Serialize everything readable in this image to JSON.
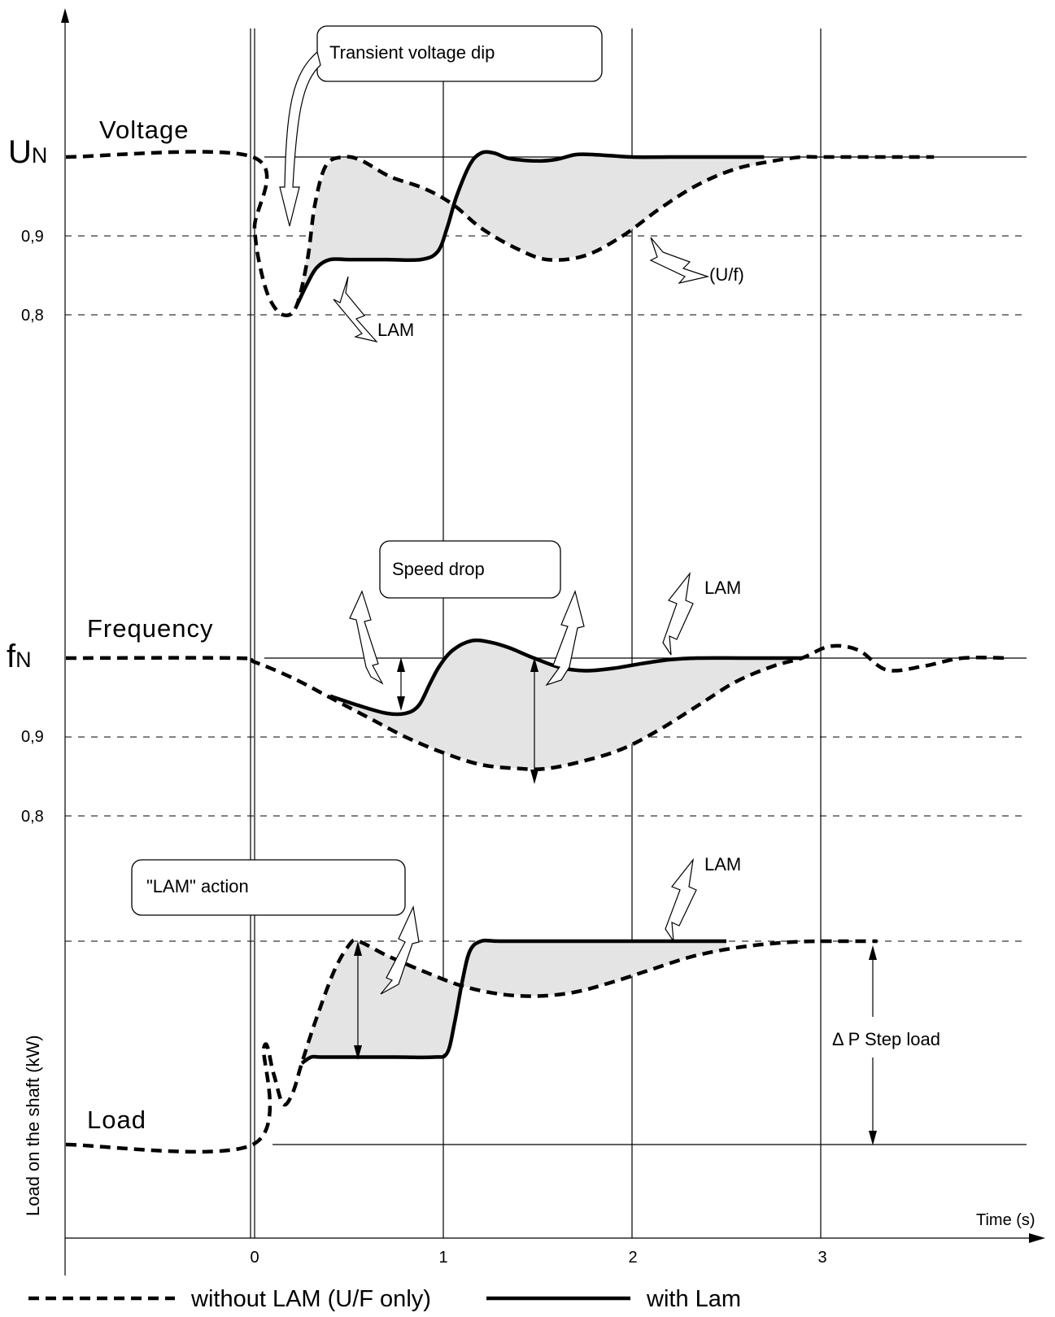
{
  "chart_data": {
    "type": "line",
    "title": "",
    "xlabel": "Time (s)",
    "ylabel": "Load on the shaft  (kW)",
    "xticks": [
      "0",
      "1",
      "2",
      "3"
    ],
    "xlim": [
      -1,
      4
    ],
    "legend": {
      "position": "bottom",
      "entries": [
        {
          "label": "without LAM (U/F only)",
          "style": "dashed"
        },
        {
          "label": "with Lam",
          "style": "solid"
        }
      ]
    },
    "panels": [
      {
        "id": "voltage",
        "title": "Voltage",
        "nominal_label_main": "U",
        "nominal_label_sub": "N",
        "yticks": [
          "0,9",
          "0,8"
        ],
        "ref_levels": [
          1.0,
          0.9,
          0.8
        ],
        "series": [
          {
            "name": "without LAM (U/F only)",
            "style": "dashed",
            "x": [
              -1,
              -0.01,
              0.0,
              0.03,
              0.08,
              0.15,
              0.22,
              0.28,
              0.32,
              0.38,
              0.48,
              0.57,
              0.72,
              0.9,
              1.05,
              1.2,
              1.38,
              1.55,
              1.75,
              1.95,
              2.15,
              2.35,
              2.55,
              2.75,
              2.9,
              3.0,
              3.4,
              3.6
            ],
            "y": [
              1.0,
              1.0,
              0.91,
              0.86,
              0.82,
              0.8,
              0.81,
              0.87,
              0.94,
              0.99,
              1.0,
              0.995,
              0.975,
              0.96,
              0.94,
              0.91,
              0.885,
              0.87,
              0.875,
              0.9,
              0.935,
              0.965,
              0.985,
              0.995,
              1.0,
              1.0,
              1.0,
              1.0
            ]
          },
          {
            "name": "with Lam",
            "style": "solid",
            "x": [
              0.22,
              0.28,
              0.33,
              0.4,
              0.5,
              0.7,
              0.88,
              0.97,
              1.02,
              1.07,
              1.14,
              1.2,
              1.27,
              1.35,
              1.5,
              1.6,
              1.7,
              1.8,
              2.0,
              2.2,
              2.5,
              2.7
            ],
            "y": [
              0.81,
              0.84,
              0.86,
              0.87,
              0.87,
              0.87,
              0.87,
              0.88,
              0.91,
              0.95,
              0.99,
              1.005,
              1.005,
              0.998,
              0.995,
              0.997,
              1.003,
              1.003,
              1.0,
              1.0,
              1.0,
              1.0
            ]
          }
        ],
        "annotations": [
          "Transient voltage dip",
          "LAM",
          "(U/f)"
        ]
      },
      {
        "id": "frequency",
        "title": "Frequency",
        "nominal_label_main": "f",
        "nominal_label_sub": "N",
        "yticks": [
          "0,9",
          "0,8"
        ],
        "ref_levels": [
          1.0,
          0.9,
          0.8
        ],
        "series": [
          {
            "name": "without LAM (U/F only)",
            "style": "dashed",
            "x": [
              -1,
              -0.1,
              0.0,
              0.2,
              0.4,
              0.6,
              0.8,
              1.0,
              1.2,
              1.4,
              1.55,
              1.75,
              1.95,
              2.15,
              2.35,
              2.55,
              2.75,
              2.9,
              3.05,
              3.2,
              3.35,
              3.55,
              3.75,
              4.0
            ],
            "y": [
              1.0,
              1.0,
              0.995,
              0.975,
              0.95,
              0.925,
              0.9,
              0.88,
              0.865,
              0.86,
              0.86,
              0.87,
              0.885,
              0.91,
              0.94,
              0.97,
              0.99,
              1.0,
              1.015,
              1.01,
              0.985,
              0.99,
              1.0,
              1.0
            ]
          },
          {
            "name": "with Lam",
            "style": "solid",
            "x": [
              0.4,
              0.55,
              0.7,
              0.8,
              0.87,
              0.93,
              0.98,
              1.05,
              1.15,
              1.25,
              1.35,
              1.48,
              1.62,
              1.75,
              1.9,
              2.05,
              2.2,
              2.35,
              2.6,
              2.9
            ],
            "y": [
              0.952,
              0.94,
              0.93,
              0.93,
              0.94,
              0.968,
              0.99,
              1.01,
              1.022,
              1.02,
              1.013,
              1.0,
              0.988,
              0.984,
              0.987,
              0.993,
              0.998,
              1.0,
              1.0,
              1.0
            ]
          }
        ],
        "annotations": [
          "Speed drop",
          "LAM"
        ]
      },
      {
        "id": "load",
        "title": "Load",
        "ylabel": "Load on the shaft  (kW)",
        "series": [
          {
            "name": "without LAM (U/F only)",
            "style": "dashed",
            "x": [
              -1,
              -0.01,
              0.05,
              0.1,
              0.15,
              0.2,
              0.25,
              0.32,
              0.42,
              0.5,
              0.55,
              0.7,
              0.9,
              1.1,
              1.3,
              1.5,
              1.7,
              1.9,
              2.1,
              2.3,
              2.5,
              2.7,
              2.9,
              3.1,
              3.3
            ],
            "y": [
              0.0,
              0.0,
              0.48,
              0.35,
              0.2,
              0.25,
              0.4,
              0.6,
              0.85,
              0.98,
              1.0,
              0.93,
              0.85,
              0.78,
              0.74,
              0.73,
              0.75,
              0.8,
              0.86,
              0.92,
              0.96,
              0.985,
              0.998,
              1.0,
              1.0
            ]
          },
          {
            "name": "with Lam",
            "style": "solid",
            "x": [
              0.25,
              0.3,
              0.35,
              0.5,
              0.75,
              0.95,
              1.02,
              1.06,
              1.1,
              1.14,
              1.2,
              1.3,
              1.6,
              2.0,
              2.5
            ],
            "y": [
              0.4,
              0.43,
              0.43,
              0.43,
              0.43,
              0.43,
              0.45,
              0.6,
              0.8,
              0.95,
              1.0,
              1.0,
              1.0,
              1.0,
              1.0
            ]
          }
        ],
        "annotations": [
          "\"LAM\" action",
          "LAM",
          "Δ P Step load"
        ]
      }
    ]
  }
}
